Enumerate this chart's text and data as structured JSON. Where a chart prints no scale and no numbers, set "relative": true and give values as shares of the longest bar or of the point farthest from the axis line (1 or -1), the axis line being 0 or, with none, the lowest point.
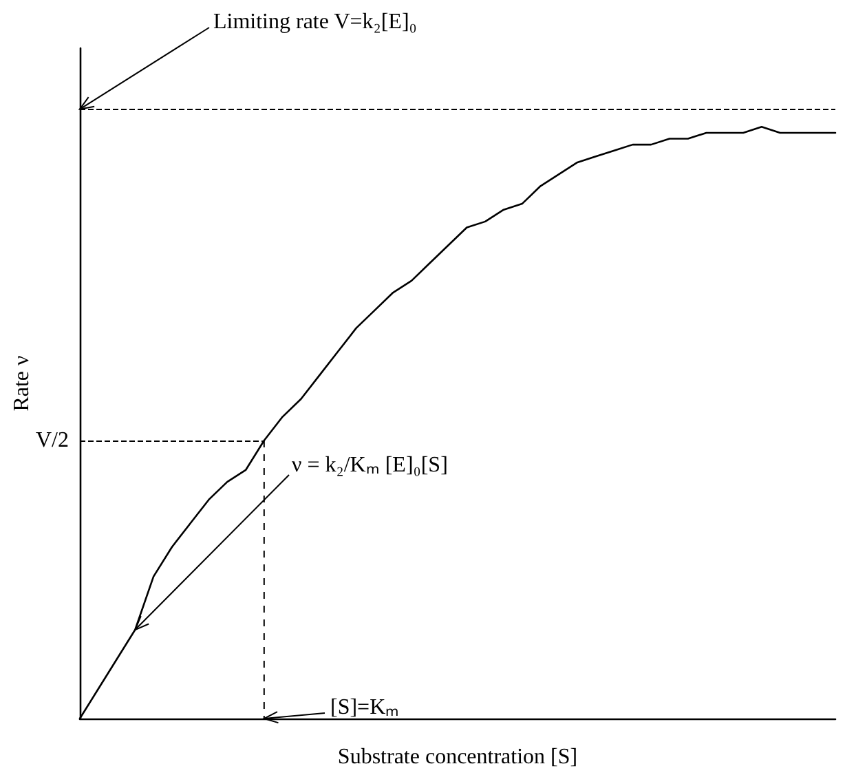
{
  "chart_data": {
    "type": "line",
    "relative": true,
    "xlabel": "Substrate concentration [S]",
    "ylabel": "Rate ν",
    "categories": [
      null,
      null,
      null,
      null,
      null,
      null,
      null,
      null,
      null,
      null,
      null,
      null,
      null,
      null,
      null,
      null,
      null,
      null,
      null,
      null,
      null,
      null,
      null,
      null,
      null,
      null,
      null,
      null,
      null,
      null,
      null,
      null,
      null,
      null,
      null,
      null,
      null,
      null,
      null,
      null,
      null,
      null
    ],
    "series": [
      {
        "color": "#000000",
        "values": [
          0,
          0.05,
          0.1,
          0.15,
          0.24,
          0.29,
          0.33,
          0.37,
          0.4,
          0.42,
          0.47,
          0.51,
          0.54,
          0.58,
          0.62,
          0.66,
          0.69,
          0.72,
          0.74,
          0.77,
          0.8,
          0.83,
          0.84,
          0.86,
          0.87,
          0.9,
          0.92,
          0.94,
          0.95,
          0.96,
          0.97,
          0.97,
          0.98,
          0.98,
          0.99,
          0.99,
          0.99,
          1,
          0.99,
          0.99,
          0.99,
          0.99
        ]
      }
    ],
    "ref_lines": [
      {
        "axis": "y",
        "value": 1.03,
        "line_style": "dashed",
        "color": "#000000"
      },
      {
        "axis": "y",
        "value": 0.47,
        "label": "V/2",
        "line_style": "dashed",
        "color": "#000000"
      }
    ],
    "annotations": [
      "Limiting rate V=k₂[E]₀",
      "ν = k₂/Kₘ [E]₀[S]",
      "[S]=Kₘ"
    ],
    "grid": false,
    "marker": "none",
    "line_style": "solid"
  }
}
